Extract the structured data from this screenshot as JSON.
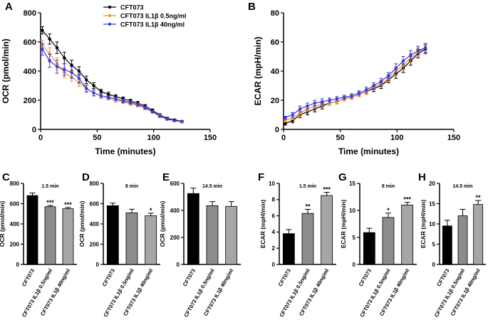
{
  "chart_data": [
    {
      "type": "line",
      "label": "A",
      "xlabel": "Time (minutes)",
      "ylabel": "OCR (pmol/min)",
      "x": [
        1.5,
        8,
        14.5,
        21,
        27.5,
        34,
        40.5,
        47,
        53.5,
        60,
        66.5,
        73,
        79.5,
        86,
        92.5,
        99,
        105.5,
        112,
        118.5,
        125
      ],
      "xlim": [
        0,
        150
      ],
      "xticks": [
        0,
        50,
        100,
        150
      ],
      "ylim": [
        0,
        800
      ],
      "yticks": [
        0,
        200,
        400,
        600,
        800
      ],
      "legend": "top-center",
      "series": [
        {
          "name": "CFT073",
          "color": "#000000",
          "values": [
            680,
            620,
            560,
            490,
            440,
            400,
            340,
            300,
            260,
            240,
            225,
            210,
            195,
            180,
            160,
            130,
            100,
            75,
            65,
            55
          ],
          "errors": [
            25,
            35,
            40,
            40,
            35,
            30,
            25,
            20,
            15,
            15,
            12,
            12,
            12,
            12,
            10,
            10,
            8,
            8,
            6,
            6
          ]
        },
        {
          "name": "CFT073 IL1β 0.5ng/ml",
          "color": "#f0932b",
          "values": [
            580,
            520,
            450,
            390,
            360,
            320,
            280,
            250,
            230,
            215,
            200,
            190,
            175,
            165,
            145,
            120,
            95,
            70,
            60,
            50
          ],
          "errors": [
            30,
            40,
            40,
            35,
            30,
            25,
            20,
            18,
            15,
            12,
            12,
            12,
            10,
            10,
            10,
            8,
            8,
            6,
            6,
            6
          ]
        },
        {
          "name": "CFT073 IL1β 40ng/ml",
          "color": "#3a3ae0",
          "values": [
            550,
            470,
            430,
            410,
            390,
            350,
            280,
            250,
            230,
            220,
            210,
            195,
            185,
            170,
            150,
            120,
            90,
            70,
            60,
            55
          ],
          "errors": [
            40,
            45,
            45,
            40,
            40,
            30,
            25,
            20,
            15,
            12,
            12,
            12,
            10,
            10,
            10,
            8,
            8,
            6,
            6,
            6
          ]
        }
      ]
    },
    {
      "type": "line",
      "label": "B",
      "xlabel": "Time (minutes)",
      "ylabel": "ECAR (mpH/min)",
      "x": [
        1.5,
        8,
        14.5,
        21,
        27.5,
        34,
        40.5,
        47,
        53.5,
        60,
        66.5,
        73,
        79.5,
        86,
        92.5,
        99,
        105.5,
        112,
        118.5,
        125
      ],
      "xlim": [
        0,
        150
      ],
      "xticks": [
        0,
        50,
        100,
        150
      ],
      "ylim": [
        0,
        80
      ],
      "yticks": [
        0,
        20,
        40,
        60,
        80
      ],
      "series": [
        {
          "color": "#000000",
          "values": [
            4,
            6,
            10,
            12,
            14,
            16,
            18,
            19,
            21,
            22,
            24,
            26,
            28,
            30,
            34,
            38,
            42,
            47,
            52,
            55
          ],
          "errors": [
            1,
            1.5,
            2,
            2,
            2,
            2,
            1.5,
            1.5,
            1.5,
            1.5,
            1.5,
            2,
            2,
            2,
            2,
            3,
            3,
            3,
            3,
            3
          ]
        },
        {
          "color": "#f0932b",
          "values": [
            6,
            8,
            11,
            14,
            16,
            17,
            18,
            19,
            21,
            22,
            24,
            26,
            29,
            31,
            35,
            40,
            44,
            49,
            53,
            56
          ],
          "errors": [
            1,
            1.5,
            2,
            2,
            2,
            2,
            1.5,
            1.5,
            1.5,
            1.5,
            1.5,
            2,
            2,
            2,
            2,
            3,
            3,
            3,
            3,
            3
          ]
        },
        {
          "color": "#3a3ae0",
          "values": [
            8,
            10,
            14,
            16,
            18,
            19,
            20,
            21,
            22,
            23,
            25,
            27,
            30,
            33,
            37,
            42,
            47,
            51,
            54,
            56
          ],
          "errors": [
            1,
            1.5,
            2,
            2,
            2,
            2,
            1.5,
            1.5,
            1.5,
            1.5,
            1.5,
            2,
            2,
            2,
            2,
            3,
            3,
            3,
            3,
            3
          ]
        }
      ]
    },
    {
      "type": "bar",
      "label": "C",
      "subtitle": "1.5 min",
      "ylabel": "OCR (pmol/min)",
      "categories": [
        "CFT073",
        "CFT073 IL1β 0.5ng/ml",
        "CFT073 IL1β 40ng/ml"
      ],
      "colors": [
        "#000000",
        "#8c8c8c",
        "#a6a6a6"
      ],
      "values": [
        680,
        570,
        550
      ],
      "errors": [
        25,
        12,
        12
      ],
      "annotations": [
        null,
        "***",
        "***"
      ],
      "ylim": [
        0,
        800
      ],
      "yticks": [
        0,
        200,
        400,
        600,
        800
      ]
    },
    {
      "type": "bar",
      "label": "D",
      "subtitle": "8 min",
      "ylabel": "OCR (pmol/min)",
      "categories": [
        "CFT073",
        "CFT073 IL1β 0.5ng/ml",
        "CFT073 IL1β 40ng/ml"
      ],
      "colors": [
        "#000000",
        "#8c8c8c",
        "#a6a6a6"
      ],
      "values": [
        580,
        510,
        480
      ],
      "errors": [
        25,
        35,
        25
      ],
      "annotations": [
        null,
        null,
        "*"
      ],
      "ylim": [
        0,
        800
      ],
      "yticks": [
        0,
        200,
        400,
        600,
        800
      ]
    },
    {
      "type": "bar",
      "label": "E",
      "subtitle": "14.5 min",
      "ylabel": "OCR (pmol/min)",
      "categories": [
        "CFT073",
        "CFT073 IL1β 0.5ng/ml",
        "CFT073 IL1β 40ng/ml"
      ],
      "colors": [
        "#000000",
        "#8c8c8c",
        "#a6a6a6"
      ],
      "values": [
        525,
        435,
        430
      ],
      "errors": [
        40,
        30,
        35
      ],
      "ylim": [
        0,
        600
      ],
      "yticks": [
        0,
        200,
        400,
        600
      ]
    },
    {
      "type": "bar",
      "label": "F",
      "subtitle": "1.5 min",
      "ylabel": "ECAR (mpH/min)",
      "categories": [
        "CFT073",
        "CFT073 IL1β 0.5ng/ml",
        "CFT073 IL1β 40ng/ml"
      ],
      "colors": [
        "#000000",
        "#8c8c8c",
        "#a6a6a6"
      ],
      "values": [
        3.8,
        6.3,
        8.5
      ],
      "errors": [
        0.5,
        0.5,
        0.4
      ],
      "annotations": [
        null,
        "**",
        "***"
      ],
      "ylim": [
        0,
        10
      ],
      "yticks": [
        0,
        2,
        4,
        6,
        8,
        10
      ]
    },
    {
      "type": "bar",
      "label": "G",
      "subtitle": "8 min",
      "ylabel": "ECAR (mpH/min)",
      "categories": [
        "CFT073",
        "CFT073 IL1β 0.5ng/ml",
        "CFT073 IL1β 40ng/ml"
      ],
      "colors": [
        "#000000",
        "#8c8c8c",
        "#a6a6a6"
      ],
      "values": [
        5.9,
        8.7,
        11
      ],
      "errors": [
        0.8,
        0.8,
        0.5
      ],
      "annotations": [
        null,
        "*",
        "***"
      ],
      "ylim": [
        0,
        15
      ],
      "yticks": [
        0,
        5,
        10,
        15
      ]
    },
    {
      "type": "bar",
      "label": "H",
      "subtitle": "14.5 min",
      "ylabel": "ECAR (mpH/min)",
      "categories": [
        "CFT073",
        "CFT073 IL1β 0.5ng/ml",
        "CFT073 IL1β 40ng/ml"
      ],
      "colors": [
        "#000000",
        "#8c8c8c",
        "#a6a6a6"
      ],
      "values": [
        9.5,
        12,
        14.8
      ],
      "errors": [
        1.4,
        1.6,
        1
      ],
      "annotations": [
        null,
        null,
        "**"
      ],
      "ylim": [
        0,
        20
      ],
      "yticks": [
        0,
        5,
        10,
        15,
        20
      ]
    }
  ]
}
